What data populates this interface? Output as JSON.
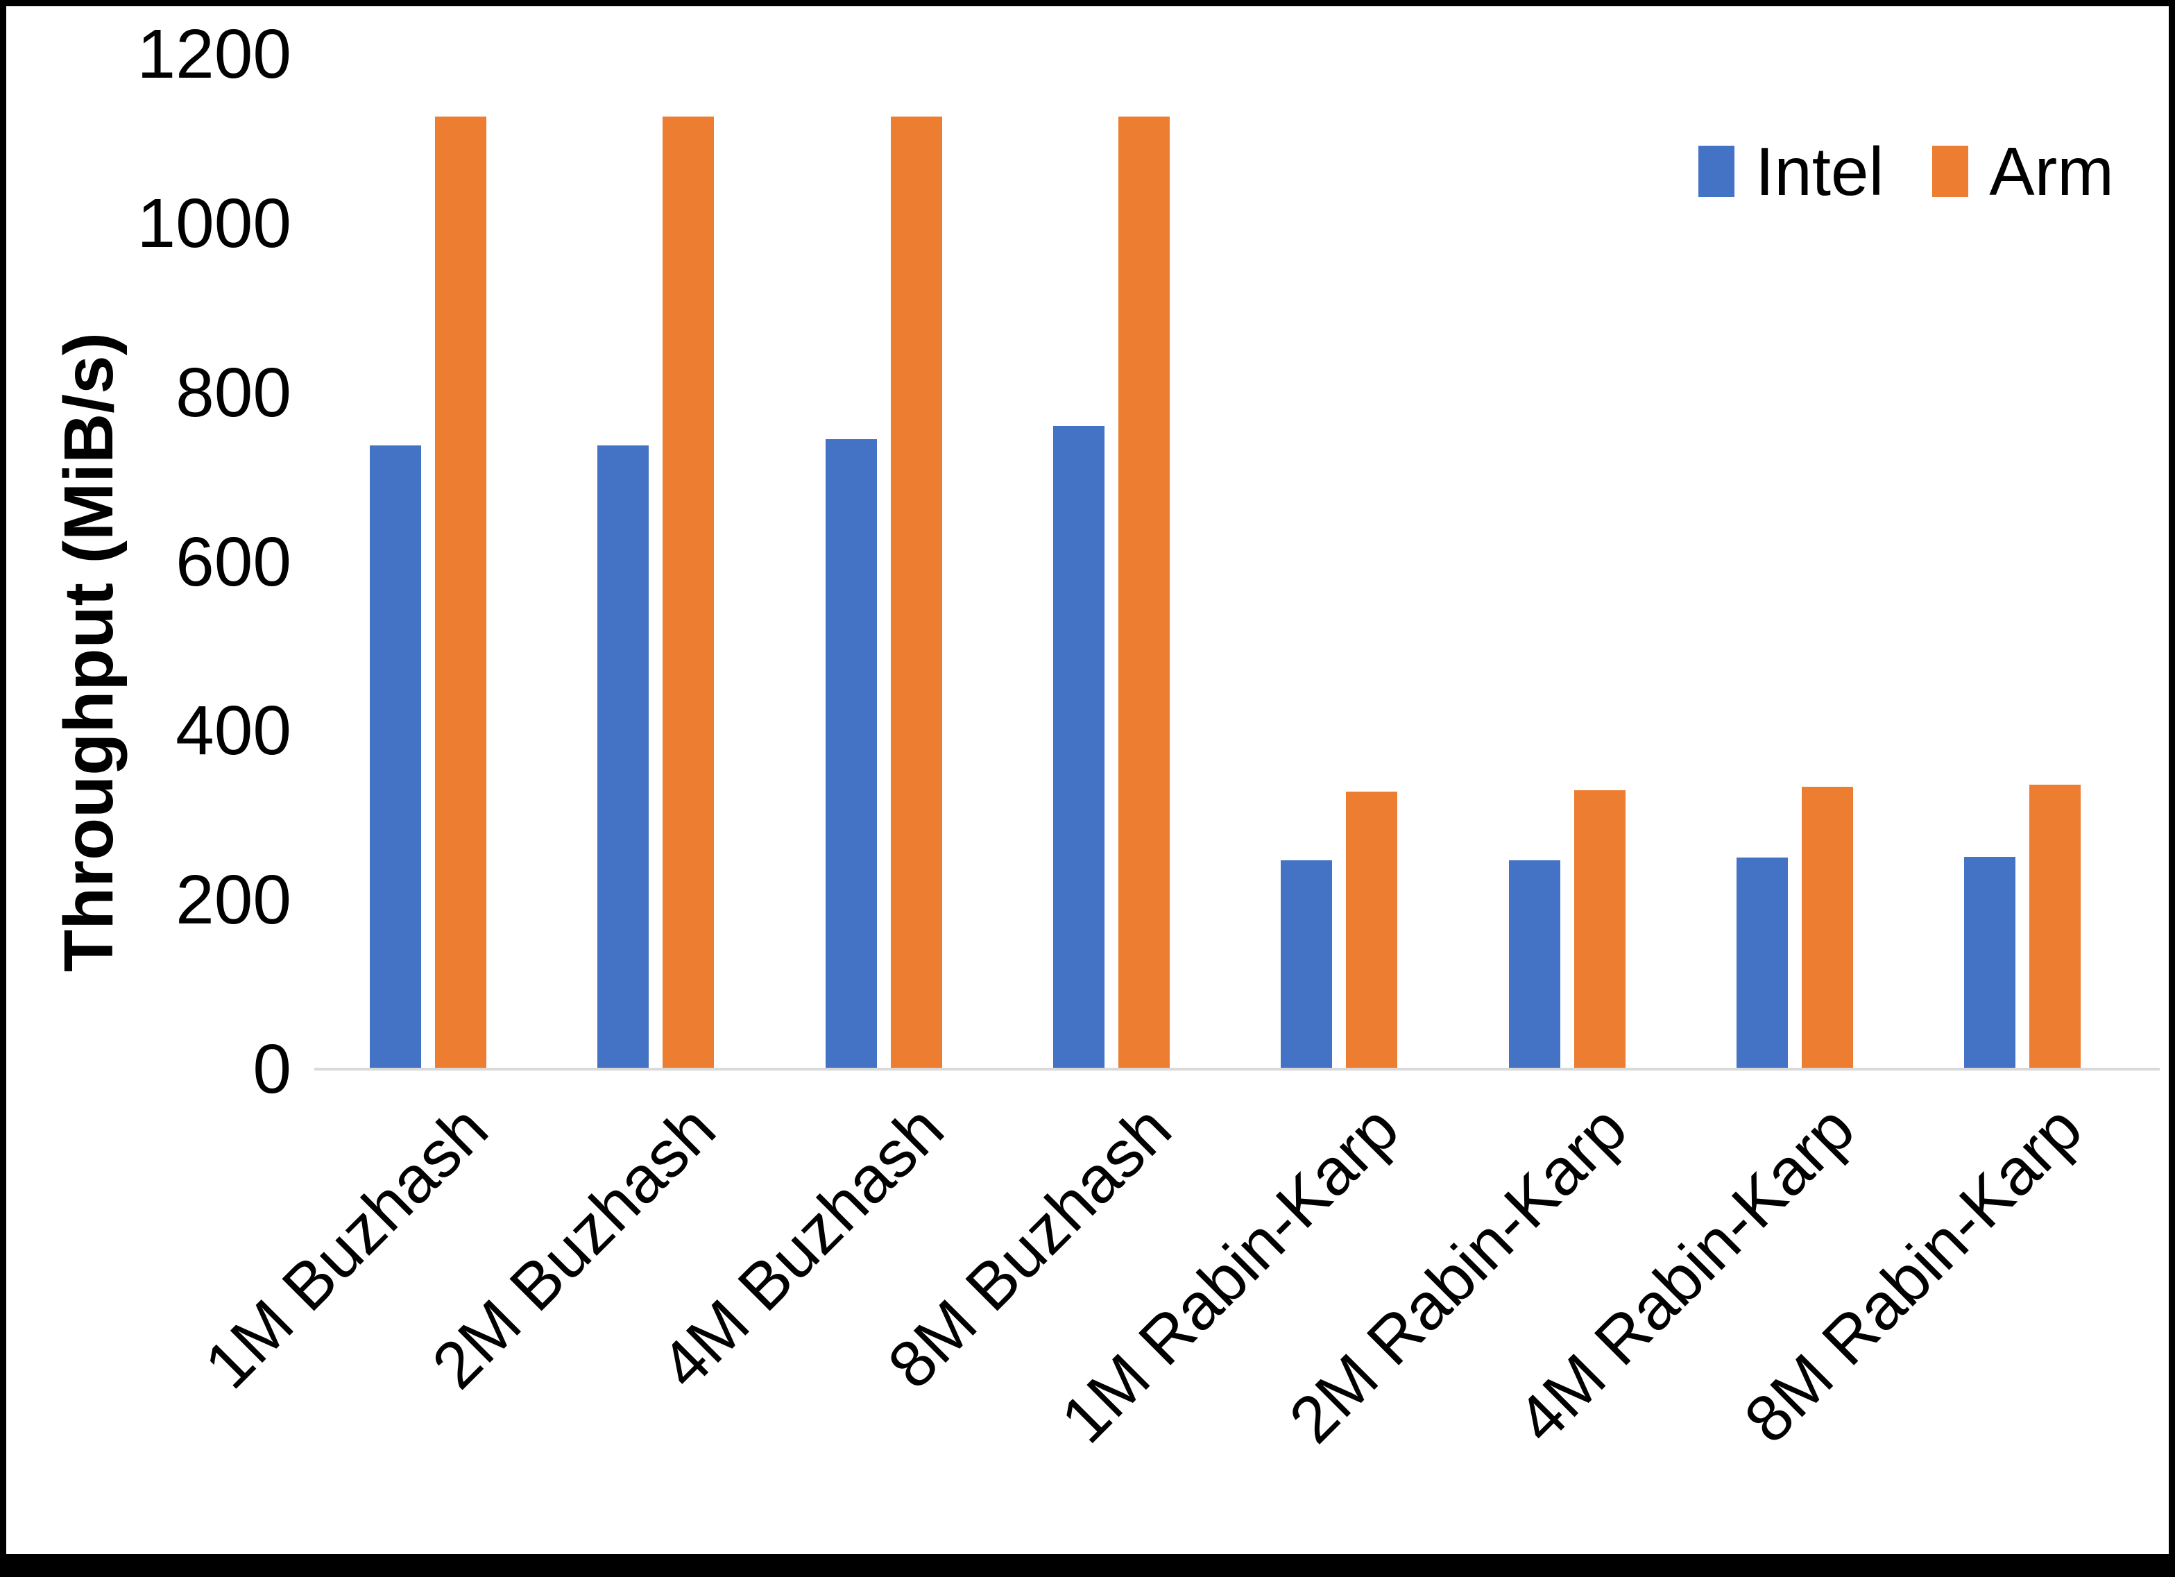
{
  "chart_data": {
    "type": "bar",
    "title": "",
    "ylabel": "Throughput (MiB/s)",
    "xlabel": "",
    "ylim": [
      0,
      1200
    ],
    "yticks": [
      "0",
      "200",
      "400",
      "600",
      "800",
      "1000",
      "1200"
    ],
    "ytick_values": [
      0,
      200,
      400,
      600,
      800,
      1000,
      1200
    ],
    "grid": false,
    "legend_position": "top-right",
    "categories": [
      "1M Buzhash",
      "2M Buzhash",
      "4M Buzhash",
      "8M Buzhash",
      "1M Rabin-Karp",
      "2M Rabin-Karp",
      "4M Rabin-Karp",
      "8M Rabin-Karp"
    ],
    "series": [
      {
        "name": "Intel",
        "color": "#4472C4",
        "values": [
          737,
          737,
          745,
          760,
          247,
          247,
          250,
          251
        ]
      },
      {
        "name": "Arm",
        "color": "#ED7D31",
        "values": [
          1126,
          1126,
          1126,
          1126,
          328,
          330,
          334,
          336
        ]
      }
    ]
  },
  "colors": {
    "background": "#FFFFFF",
    "axis_line": "#D9D9D9",
    "text": "#000000",
    "border": "#000000",
    "intel": "#4472C4",
    "arm": "#ED7D31"
  }
}
